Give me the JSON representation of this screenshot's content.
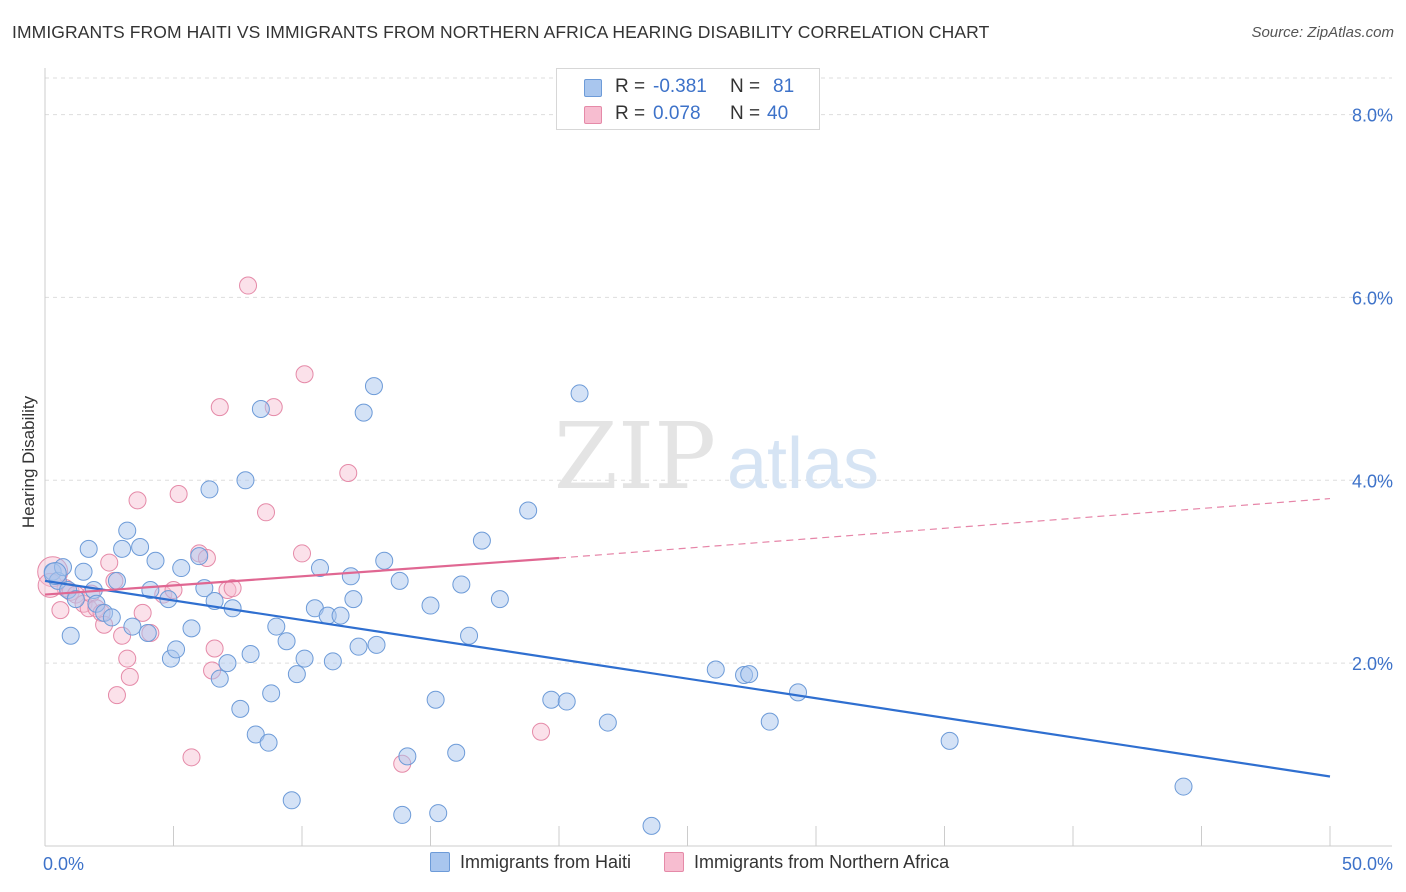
{
  "title": "IMMIGRANTS FROM HAITI VS IMMIGRANTS FROM NORTHERN AFRICA HEARING DISABILITY CORRELATION CHART",
  "source": "Source: ZipAtlas.com",
  "watermark": {
    "zip": "ZIP",
    "atlas": "atlas"
  },
  "legend_top": {
    "rows": [
      {
        "r_label": "R =",
        "r_value": "-0.381",
        "n_label": "N =",
        "n_value": "81"
      },
      {
        "r_label": "R =",
        "r_value": "0.078",
        "n_label": "N =",
        "n_value": "40"
      }
    ]
  },
  "legend_bottom": {
    "series1": "Immigrants from Haiti",
    "series2": "Immigrants from Northern Africa"
  },
  "colors": {
    "haiti_fill": "#a9c6ee",
    "haiti_stroke": "#6d9bd8",
    "haiti_line": "#2f6fd0",
    "nafrica_fill": "#f7bdd0",
    "nafrica_stroke": "#e58aa8",
    "nafrica_line": "#e06792",
    "grid": "#dddddd",
    "tick_label": "#3d72c9"
  },
  "chart_data": {
    "type": "scatter",
    "title": "IMMIGRANTS FROM HAITI VS IMMIGRANTS FROM NORTHERN AFRICA HEARING DISABILITY CORRELATION CHART",
    "xlabel": "",
    "ylabel": "Hearing Disability",
    "xlim": [
      0,
      50
    ],
    "ylim": [
      0,
      8.4
    ],
    "x_tick_labels": [
      "0.0%",
      "50.0%"
    ],
    "y_ticks": [
      2,
      4,
      6,
      8
    ],
    "y_tick_labels": [
      "2.0%",
      "4.0%",
      "6.0%",
      "8.0%"
    ],
    "grid": true,
    "series": [
      {
        "name": "Immigrants from Haiti",
        "r": -0.381,
        "n": 81,
        "trend": {
          "x": [
            0,
            50
          ],
          "y": [
            2.9,
            0.76
          ]
        },
        "points": [
          [
            0.3,
            3.0
          ],
          [
            0.5,
            2.9
          ],
          [
            0.7,
            3.05
          ],
          [
            0.9,
            2.8
          ],
          [
            1.0,
            2.3
          ],
          [
            1.2,
            2.7
          ],
          [
            1.5,
            3.0
          ],
          [
            1.7,
            3.25
          ],
          [
            1.9,
            2.8
          ],
          [
            2.0,
            2.65
          ],
          [
            2.3,
            2.55
          ],
          [
            2.6,
            2.5
          ],
          [
            2.8,
            2.9
          ],
          [
            3.0,
            3.25
          ],
          [
            3.2,
            3.45
          ],
          [
            3.4,
            2.4
          ],
          [
            3.7,
            3.27
          ],
          [
            4.0,
            2.33
          ],
          [
            4.1,
            2.8
          ],
          [
            4.3,
            3.12
          ],
          [
            4.8,
            2.7
          ],
          [
            4.9,
            2.05
          ],
          [
            5.1,
            2.15
          ],
          [
            5.3,
            3.04
          ],
          [
            5.7,
            2.38
          ],
          [
            6.0,
            3.17
          ],
          [
            6.2,
            2.82
          ],
          [
            6.4,
            3.9
          ],
          [
            6.6,
            2.68
          ],
          [
            6.8,
            1.83
          ],
          [
            7.1,
            2.0
          ],
          [
            7.3,
            2.6
          ],
          [
            7.6,
            1.5
          ],
          [
            7.8,
            4.0
          ],
          [
            8.0,
            2.1
          ],
          [
            8.2,
            1.22
          ],
          [
            8.4,
            4.78
          ],
          [
            8.7,
            1.13
          ],
          [
            8.8,
            1.67
          ],
          [
            9.0,
            2.4
          ],
          [
            9.4,
            2.24
          ],
          [
            9.6,
            0.5
          ],
          [
            9.8,
            1.88
          ],
          [
            10.1,
            2.05
          ],
          [
            10.5,
            2.6
          ],
          [
            10.7,
            3.04
          ],
          [
            11.0,
            2.52
          ],
          [
            11.2,
            2.02
          ],
          [
            11.5,
            2.52
          ],
          [
            11.9,
            2.95
          ],
          [
            12.0,
            2.7
          ],
          [
            12.2,
            2.18
          ],
          [
            12.4,
            4.74
          ],
          [
            12.8,
            5.03
          ],
          [
            12.9,
            2.2
          ],
          [
            13.2,
            3.12
          ],
          [
            13.8,
            2.9
          ],
          [
            13.9,
            0.34
          ],
          [
            14.1,
            0.98
          ],
          [
            15.0,
            2.63
          ],
          [
            15.2,
            1.6
          ],
          [
            15.3,
            0.36
          ],
          [
            16.0,
            1.02
          ],
          [
            16.2,
            2.86
          ],
          [
            16.5,
            2.3
          ],
          [
            17.0,
            3.34
          ],
          [
            17.7,
            2.7
          ],
          [
            18.8,
            3.67
          ],
          [
            19.7,
            1.6
          ],
          [
            20.3,
            1.58
          ],
          [
            20.8,
            4.95
          ],
          [
            21.9,
            1.35
          ],
          [
            23.6,
            0.22
          ],
          [
            26.1,
            1.93
          ],
          [
            27.2,
            1.87
          ],
          [
            27.4,
            1.88
          ],
          [
            28.2,
            1.36
          ],
          [
            29.3,
            1.68
          ],
          [
            35.2,
            1.15
          ],
          [
            44.3,
            0.65
          ],
          [
            0.4,
            2.98
          ]
        ]
      },
      {
        "name": "Immigrants from Northern Africa",
        "r": 0.078,
        "n": 40,
        "trend": {
          "x": [
            0,
            20,
            50
          ],
          "y": [
            2.75,
            3.15,
            3.8
          ],
          "solid_until_x": 20
        },
        "points": [
          [
            0.3,
            3.0
          ],
          [
            0.6,
            2.58
          ],
          [
            0.8,
            2.82
          ],
          [
            1.0,
            2.78
          ],
          [
            1.2,
            2.75
          ],
          [
            1.5,
            2.65
          ],
          [
            1.7,
            2.6
          ],
          [
            1.8,
            2.76
          ],
          [
            2.0,
            2.6
          ],
          [
            2.2,
            2.55
          ],
          [
            2.3,
            2.42
          ],
          [
            2.5,
            3.1
          ],
          [
            2.7,
            2.9
          ],
          [
            2.8,
            1.65
          ],
          [
            3.0,
            2.3
          ],
          [
            3.2,
            2.05
          ],
          [
            3.3,
            1.85
          ],
          [
            3.6,
            3.78
          ],
          [
            3.8,
            2.55
          ],
          [
            4.1,
            2.33
          ],
          [
            4.6,
            2.75
          ],
          [
            5.0,
            2.8
          ],
          [
            5.2,
            3.85
          ],
          [
            5.7,
            0.97
          ],
          [
            6.0,
            3.2
          ],
          [
            6.3,
            3.15
          ],
          [
            6.5,
            1.92
          ],
          [
            6.6,
            2.16
          ],
          [
            6.8,
            4.8
          ],
          [
            7.1,
            2.8
          ],
          [
            7.3,
            2.82
          ],
          [
            7.9,
            6.13
          ],
          [
            8.6,
            3.65
          ],
          [
            8.9,
            4.8
          ],
          [
            10.0,
            3.2
          ],
          [
            10.1,
            5.16
          ],
          [
            11.8,
            4.08
          ],
          [
            13.9,
            0.9
          ],
          [
            19.3,
            1.25
          ],
          [
            0.2,
            2.85
          ]
        ]
      }
    ]
  }
}
